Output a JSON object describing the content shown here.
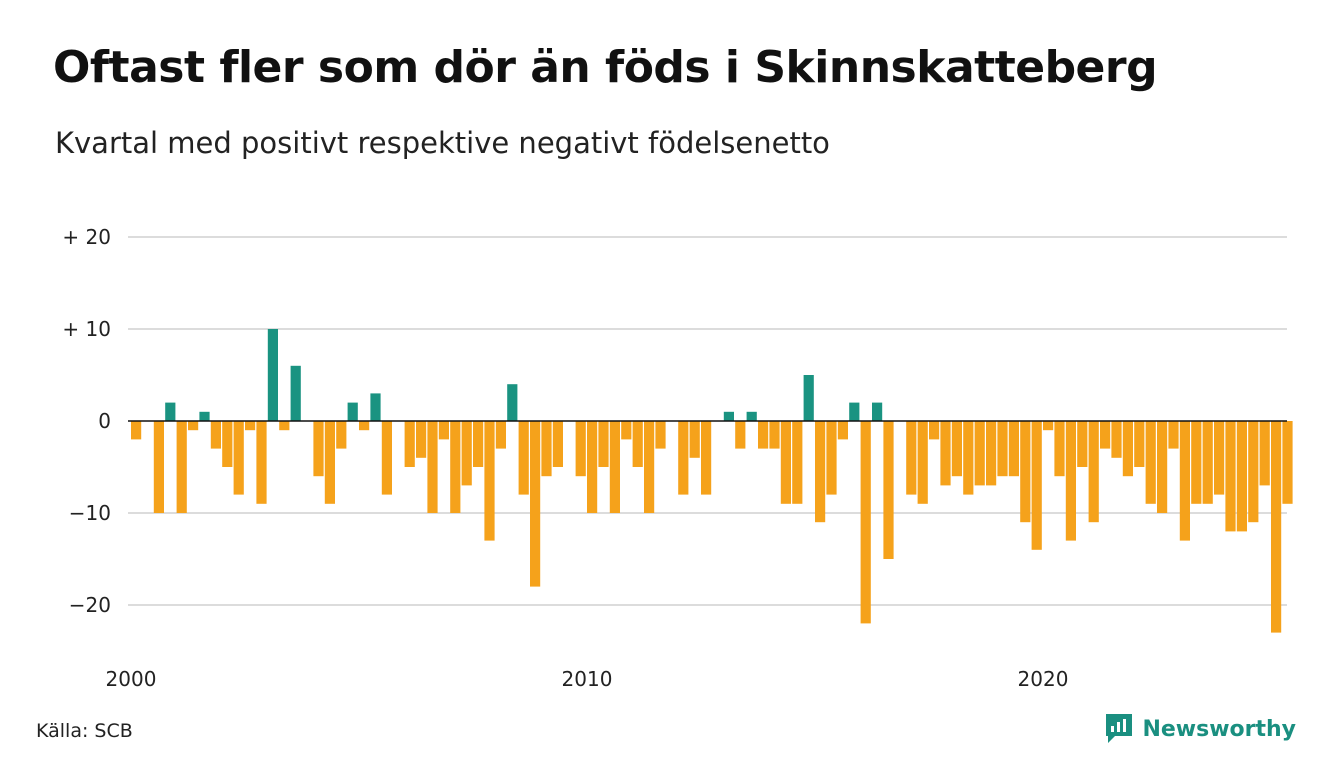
{
  "title": "Oftast fler som dör än föds i Skinnskatteberg",
  "subtitle": "Kvartal med positivt respektive negativt födelsenetto",
  "source": "Källa: SCB",
  "brand": {
    "name": "Newsworthy",
    "icon": "newsworthy-logo-icon",
    "color": "#1a8f80"
  },
  "colors": {
    "positive": "#1a9381",
    "negative": "#f5a21b",
    "grid": "#dcdcdc",
    "zero": "#111111"
  },
  "chart_data": {
    "type": "bar",
    "x_start": "2000 Q1",
    "quarters_per_year": 4,
    "values": [
      -2,
      0,
      -10,
      2,
      -10,
      -1,
      1,
      -3,
      -5,
      -8,
      -1,
      -9,
      10,
      -1,
      6,
      0,
      -6,
      -9,
      -3,
      2,
      -1,
      3,
      -8,
      0,
      -5,
      -4,
      -10,
      -2,
      -10,
      -7,
      -5,
      -13,
      -3,
      4,
      -8,
      -18,
      -6,
      -5,
      0,
      -6,
      -10,
      -5,
      -10,
      -2,
      -5,
      -10,
      -3,
      0,
      -8,
      -4,
      -8,
      0,
      1,
      -3,
      1,
      -3,
      -3,
      -9,
      -9,
      5,
      -11,
      -8,
      -2,
      2,
      -22,
      2,
      -15,
      0,
      -8,
      -9,
      -2,
      -7,
      -6,
      -8,
      -7,
      -7,
      -6,
      -6,
      -11,
      -14,
      -1,
      -6,
      -13,
      -5,
      -11,
      -3,
      -4,
      -6,
      -5,
      -9,
      -10,
      -3,
      -13,
      -9,
      -9,
      -8,
      -12,
      -12,
      -11,
      -7,
      -23,
      -9
    ],
    "x_tick_labels": [
      "2000",
      "2010",
      "2020"
    ],
    "y_ticks": [
      20,
      10,
      0,
      -10,
      -20
    ],
    "y_tick_labels": [
      "+ 20",
      "+ 10",
      "0",
      "−10",
      "−20"
    ],
    "ylim": [
      -25,
      21
    ],
    "grid": true,
    "legend": "none"
  }
}
